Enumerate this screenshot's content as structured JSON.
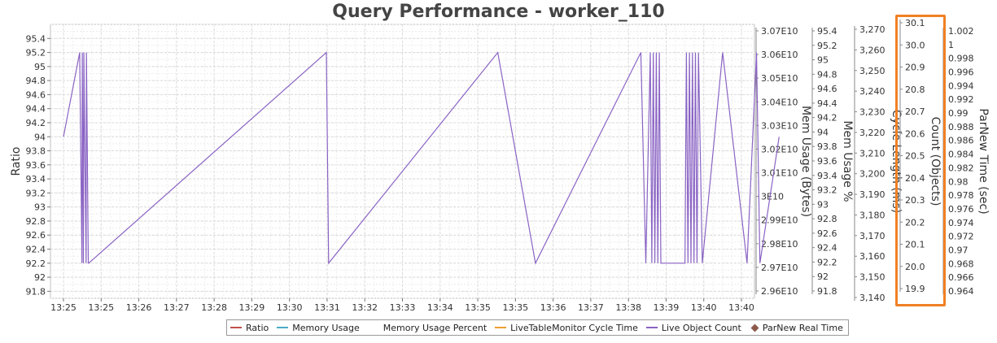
{
  "chart_data": {
    "type": "line",
    "title": "Query Performance - worker_110",
    "x_ticks": [
      "13:25",
      "13:25",
      "13:26",
      "13:27",
      "13:28",
      "13:29",
      "13:30",
      "13:31",
      "13:32",
      "13:33",
      "13:34",
      "13:35",
      "13:35",
      "13:36",
      "13:37",
      "13:38",
      "13:39",
      "13:40",
      "13:40"
    ],
    "axes": [
      {
        "id": "ratio",
        "label": "Ratio",
        "side": "left",
        "ylim": [
          91.7,
          95.6
        ],
        "ticks": [
          "95.4",
          "95.2",
          "95",
          "94.8",
          "94.6",
          "94.4",
          "94.2",
          "94",
          "93.8",
          "93.6",
          "93.4",
          "93.2",
          "93",
          "92.8",
          "92.6",
          "92.4",
          "92.2",
          "92",
          "91.8"
        ],
        "tick_values": [
          95.4,
          95.2,
          95.0,
          94.8,
          94.6,
          94.4,
          94.2,
          94.0,
          93.8,
          93.6,
          93.4,
          93.2,
          93.0,
          92.8,
          92.6,
          92.4,
          92.2,
          92.0,
          91.8
        ]
      },
      {
        "id": "mem_bytes",
        "label": "Mem Usage (Bytes)",
        "side": "right",
        "ticks": [
          "3.07E10",
          "3.06E10",
          "3.05E10",
          "3.04E10",
          "3.03E10",
          "3.02E10",
          "3.01E10",
          "3E10",
          "2.99E10",
          "2.98E10",
          "2.97E10",
          "2.96E10"
        ],
        "tick_values": [
          30700000000.0,
          30600000000.0,
          30500000000.0,
          30400000000.0,
          30300000000.0,
          30200000000.0,
          30100000000.0,
          30000000000.0,
          29900000000.0,
          29800000000.0,
          29700000000.0,
          29600000000.0
        ]
      },
      {
        "id": "mem_pct",
        "label": "Mem Usage %",
        "side": "right",
        "ticks": [
          "95.4",
          "95.2",
          "95",
          "94.8",
          "94.6",
          "94.4",
          "94.2",
          "94",
          "93.8",
          "93.6",
          "93.4",
          "93.2",
          "93",
          "92.8",
          "92.6",
          "92.4",
          "92.2",
          "92",
          "91.8"
        ],
        "tick_values": [
          95.4,
          95.2,
          95.0,
          94.8,
          94.6,
          94.4,
          94.2,
          94.0,
          93.8,
          93.6,
          93.4,
          93.2,
          93.0,
          92.8,
          92.6,
          92.4,
          92.2,
          92.0,
          91.8
        ]
      },
      {
        "id": "cycle",
        "label": "Cycle Length (ms)",
        "side": "right",
        "ticks": [
          "3,270",
          "3,260",
          "3,250",
          "3,240",
          "3,230",
          "3,220",
          "3,210",
          "3,200",
          "3,190",
          "3,180",
          "3,170",
          "3,160",
          "3,150",
          "3,140"
        ],
        "tick_values": [
          3270,
          3260,
          3250,
          3240,
          3230,
          3220,
          3210,
          3200,
          3190,
          3180,
          3170,
          3160,
          3150,
          3140
        ]
      },
      {
        "id": "count",
        "label": "Count (Objects)",
        "side": "right",
        "ticks": [
          "30.1",
          "30.0",
          "20.9",
          "20.8",
          "20.7",
          "20.6",
          "20.5",
          "20.4",
          "20.3",
          "20.2",
          "20.1",
          "20.0",
          "19.9"
        ],
        "tick_values": [
          30.1,
          30.0,
          20.9,
          20.8,
          20.7,
          20.6,
          20.5,
          20.4,
          20.3,
          20.2,
          20.1,
          20.0,
          19.9
        ]
      },
      {
        "id": "parnew",
        "label": "ParNew Time (sec)",
        "side": "right",
        "ticks": [
          "1.002",
          "1",
          "0.998",
          "0.996",
          "0.994",
          "0.992",
          "0.99",
          "0.988",
          "0.986",
          "0.984",
          "0.982",
          "0.98",
          "0.978",
          "0.976",
          "0.974",
          "0.972",
          "0.97",
          "0.968",
          "0.966",
          "0.964"
        ],
        "tick_values": [
          1.002,
          1.0,
          0.998,
          0.996,
          0.994,
          0.992,
          0.99,
          0.988,
          0.986,
          0.984,
          0.982,
          0.98,
          0.978,
          0.976,
          0.974,
          0.972,
          0.97,
          0.968,
          0.966,
          0.964
        ]
      }
    ],
    "series": [
      {
        "name": "Ratio",
        "color": "#c0504d",
        "marker": "line"
      },
      {
        "name": "Memory Usage",
        "color": "#4bacc6",
        "marker": "line"
      },
      {
        "name": "Memory Usage Percent",
        "color": "#ffffff",
        "marker": "none"
      },
      {
        "name": "LiveTableMonitor Cycle Time",
        "color": "#f0a030",
        "marker": "line"
      },
      {
        "name": "Live Object Count",
        "color": "#8a63c4",
        "marker": "line",
        "x": [
          0.0,
          0.43,
          0.49,
          0.5,
          0.53,
          0.54,
          0.6,
          0.61,
          0.66,
          0.67,
          6.98,
          7.04,
          11.53,
          12.53,
          15.33,
          15.46,
          15.58,
          15.62,
          15.66,
          15.7,
          15.74,
          15.78,
          15.82,
          15.86,
          16.5,
          16.54,
          16.58,
          16.62,
          16.66,
          16.7,
          16.74,
          16.78,
          16.82,
          16.86,
          16.96,
          17.5,
          18.15,
          18.4,
          18.49,
          19.0
        ],
        "y": [
          94.0,
          95.2,
          92.2,
          95.2,
          92.2,
          95.2,
          92.2,
          95.2,
          92.2,
          92.2,
          95.2,
          92.2,
          95.2,
          92.2,
          95.2,
          92.2,
          95.2,
          92.2,
          95.2,
          92.2,
          95.2,
          92.2,
          95.2,
          92.2,
          92.2,
          95.2,
          92.2,
          95.2,
          92.2,
          95.2,
          92.2,
          95.2,
          92.2,
          95.2,
          92.2,
          95.2,
          92.2,
          95.2,
          92.2,
          94.0
        ]
      },
      {
        "name": "ParNew Real Time",
        "color": "#8b5a4a",
        "marker": "diamond"
      }
    ],
    "grid": true,
    "legend_position": "bottom"
  }
}
